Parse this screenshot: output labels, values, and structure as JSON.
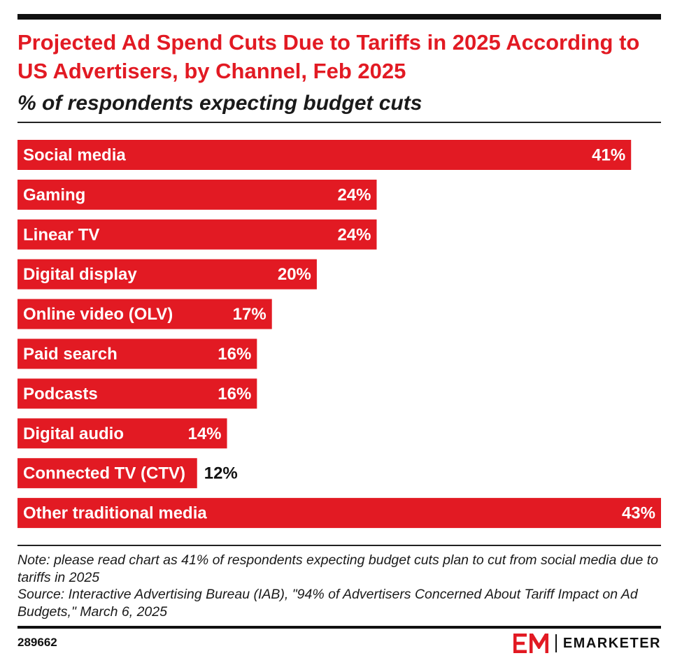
{
  "header": {
    "title": "Projected Ad Spend Cuts Due to Tariffs in 2025 According to US Advertisers, by Channel, Feb 2025",
    "subtitle": "% of respondents expecting budget cuts"
  },
  "chart_data": {
    "type": "bar",
    "orientation": "horizontal",
    "title": "Projected Ad Spend Cuts Due to Tariffs in 2025 According to US Advertisers, by Channel, Feb 2025",
    "subtitle": "% of respondents expecting budget cuts",
    "xlabel": "",
    "ylabel": "",
    "categories": [
      "Social media",
      "Gaming",
      "Linear TV",
      "Digital display",
      "Online video (OLV)",
      "Paid search",
      "Podcasts",
      "Digital audio",
      "Connected TV (CTV)",
      "Other traditional media"
    ],
    "values": [
      41,
      24,
      24,
      20,
      17,
      16,
      16,
      14,
      12,
      43
    ],
    "value_labels": [
      "41%",
      "24%",
      "24%",
      "20%",
      "17%",
      "16%",
      "16%",
      "14%",
      "12%",
      "43%"
    ],
    "xlim": [
      0,
      43
    ],
    "grid": false,
    "legend": "none",
    "bar_color": "#e21a23"
  },
  "footer": {
    "note": "Note: please read chart as 41% of respondents expecting budget cuts plan to cut from social media due to tariffs in 2025",
    "source": "Source: Interactive Advertising Bureau (IAB), \"94% of Advertisers Concerned About Tariff Impact on Ad Budgets,\" March 6, 2025",
    "chart_id": "289662",
    "brand": "EMARKETER",
    "brand_mark": "EM"
  },
  "colors": {
    "accent": "#e21a23",
    "text": "#111111",
    "background": "#ffffff"
  }
}
